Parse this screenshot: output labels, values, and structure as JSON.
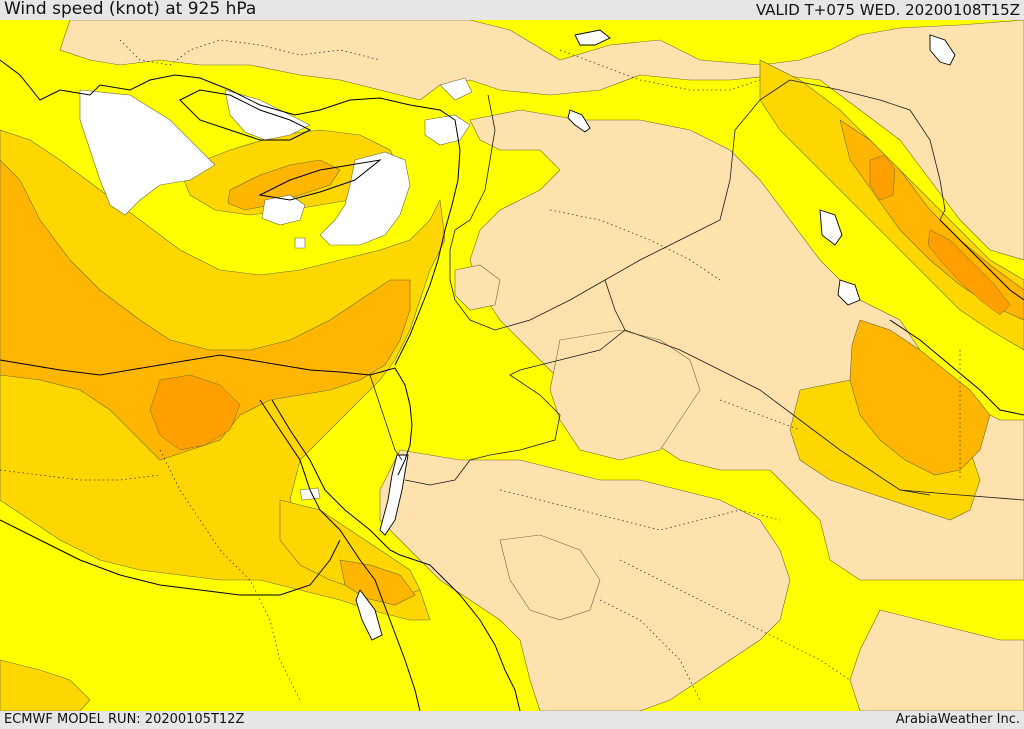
{
  "header": {
    "title": "Wind speed (knot) at 925 hPa",
    "valid": "VALID T+075 WED. 20200108T15Z"
  },
  "footer": {
    "model_run": "ECMWF MODEL RUN: 20200105T12Z",
    "credit": "ArabiaWeather Inc."
  },
  "colors": {
    "calm": "#ffffff",
    "light": "#fde2ad",
    "moderate": "#ffff00",
    "fresh": "#ffd700",
    "strong": "#ffb600",
    "coast": "#000000",
    "bar": "#e6e6e6"
  }
}
